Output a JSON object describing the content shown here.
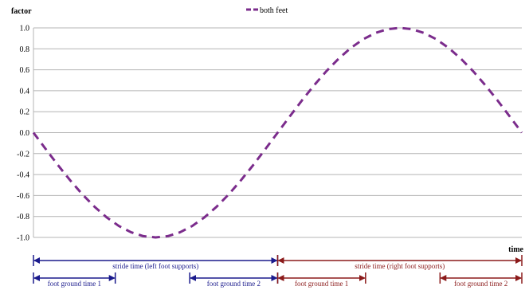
{
  "chart_data": {
    "type": "line",
    "title": "",
    "ylabel": "factor",
    "xlabel": "time",
    "ylim": [
      -1.0,
      1.0
    ],
    "yticks": [
      "1.0",
      "0.8",
      "0.6",
      "0.4",
      "0.2",
      "0.0",
      "-0.2",
      "-0.4",
      "-0.6",
      "-0.8",
      "-1.0"
    ],
    "grid": true,
    "legend_position": "top-center",
    "series": [
      {
        "name": "both feet",
        "color": "#7b2c8c",
        "dash": true,
        "x": [
          0,
          1,
          2,
          3,
          4,
          5,
          6,
          7,
          8,
          9,
          10,
          11,
          12,
          13,
          14,
          15,
          16,
          17,
          18,
          19,
          20,
          21,
          22,
          23,
          24,
          25,
          26,
          27,
          28,
          29,
          30,
          31,
          32,
          33,
          34,
          35,
          36,
          37,
          38,
          39,
          40
        ],
        "values": [
          0.0,
          -0.156,
          -0.309,
          -0.454,
          -0.588,
          -0.707,
          -0.809,
          -0.891,
          -0.951,
          -0.988,
          -1.0,
          -0.988,
          -0.951,
          -0.891,
          -0.809,
          -0.707,
          -0.588,
          -0.454,
          -0.309,
          -0.156,
          0.0,
          0.156,
          0.309,
          0.454,
          0.588,
          0.707,
          0.809,
          0.891,
          0.951,
          0.988,
          1.0,
          0.988,
          0.951,
          0.891,
          0.809,
          0.707,
          0.588,
          0.454,
          0.309,
          0.156,
          0.0
        ]
      }
    ],
    "annotations": {
      "stride_left": {
        "label": "stride time (left foot supports)",
        "color": "#1a1a8c",
        "from": 0,
        "to": 20
      },
      "stride_right": {
        "label": "stride time (right foot supports)",
        "color": "#8b1a1a",
        "from": 20,
        "to": 40
      },
      "ground_times": [
        {
          "label": "foot ground time 1",
          "color": "#1a1a8c",
          "from": 0,
          "to": 6.7
        },
        {
          "label": "foot ground time 2",
          "color": "#1a1a8c",
          "from": 12.8,
          "to": 20
        },
        {
          "label": "foot ground time 1",
          "color": "#8b1a1a",
          "from": 20,
          "to": 27.2
        },
        {
          "label": "foot ground time 2",
          "color": "#8b1a1a",
          "from": 33.3,
          "to": 40
        }
      ]
    }
  }
}
